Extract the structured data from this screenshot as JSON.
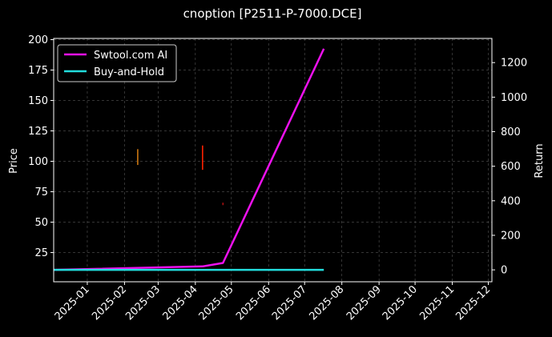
{
  "chart_data": {
    "type": "line",
    "title": "cnoption [P2511-P-7000.DCE]",
    "xlabel": "",
    "ylabel_left": "Price",
    "ylabel_right": "Return",
    "x_ticks": [
      "2025-01",
      "2025-02",
      "2025-03",
      "2025-04",
      "2025-05",
      "2025-06",
      "2025-07",
      "2025-08",
      "2025-09",
      "2025-10",
      "2025-11",
      "2025-12"
    ],
    "xlim": [
      "2024-12-04",
      "2025-12-04"
    ],
    "ylim_left": [
      1,
      201
    ],
    "yticks_left": [
      25,
      50,
      75,
      100,
      125,
      150,
      175,
      200
    ],
    "ylim_right": [
      -69,
      1340
    ],
    "yticks_right": [
      0,
      200,
      400,
      600,
      800,
      1000,
      1200
    ],
    "grid": true,
    "legend_position": "upper-left",
    "series": [
      {
        "name": "Swtool.com AI",
        "color": "#ee11ee",
        "axis": "right",
        "points": [
          {
            "x": "2024-12-04",
            "y": 0
          },
          {
            "x": "2025-04-07",
            "y": 20
          },
          {
            "x": "2025-04-24",
            "y": 40
          },
          {
            "x": "2025-07-17",
            "y": 1280
          }
        ]
      },
      {
        "name": "Buy-and-Hold",
        "color": "#22dddd",
        "axis": "right",
        "points": [
          {
            "x": "2024-12-04",
            "y": 0
          },
          {
            "x": "2025-07-17",
            "y": 0
          }
        ]
      }
    ],
    "price_marks": [
      {
        "date": "2025-02-12",
        "low": 97,
        "high": 110,
        "color": "#cc7711"
      },
      {
        "date": "2025-04-07",
        "low": 93,
        "high": 113,
        "color": "#ff2200"
      },
      {
        "date": "2025-04-24",
        "low": 64,
        "high": 66,
        "color": "#aa1111"
      }
    ]
  }
}
